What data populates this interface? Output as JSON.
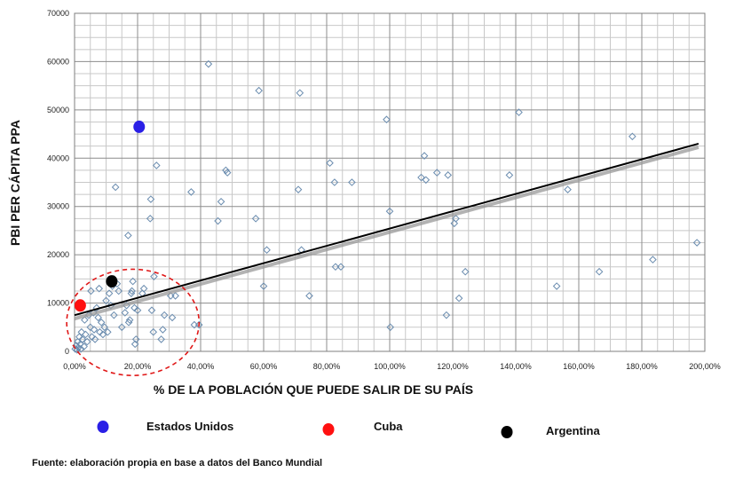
{
  "chart_data": {
    "type": "scatter",
    "xlabel": "% DE LA POBLACIÓN QUE PUEDE SALIR DE SU PAÍS",
    "ylabel": "PBI PER CÁPITA PPA",
    "xlim": [
      0,
      200
    ],
    "ylim": [
      0,
      70000
    ],
    "x_ticks": [
      "0,00%",
      "20,00%",
      "40,00%",
      "60,00%",
      "80,00%",
      "100,00%",
      "120,00%",
      "140,00%",
      "160,00%",
      "180,00%",
      "200,00%"
    ],
    "y_ticks": [
      "0",
      "10000",
      "20000",
      "30000",
      "40000",
      "50000",
      "60000",
      "70000"
    ],
    "grid": true,
    "marker_color": "#6a8caf",
    "trendline": {
      "x": [
        0,
        198
      ],
      "y": [
        7500,
        43000
      ],
      "color": "#000000"
    },
    "points": [
      [
        0.2,
        500
      ],
      [
        0.5,
        1200
      ],
      [
        0.8,
        300
      ],
      [
        1.0,
        2000
      ],
      [
        1.2,
        800
      ],
      [
        1.5,
        3000
      ],
      [
        1.8,
        1500
      ],
      [
        2.0,
        500
      ],
      [
        2.2,
        4000
      ],
      [
        2.5,
        2500
      ],
      [
        3.0,
        1000
      ],
      [
        3.2,
        6500
      ],
      [
        3.5,
        3500
      ],
      [
        4.0,
        2000
      ],
      [
        4.5,
        7500
      ],
      [
        5.0,
        5000
      ],
      [
        5.2,
        12500
      ],
      [
        5.5,
        3000
      ],
      [
        6.0,
        8000
      ],
      [
        6.2,
        4500
      ],
      [
        6.5,
        2500
      ],
      [
        7.0,
        9000
      ],
      [
        7.5,
        7000
      ],
      [
        7.8,
        13000
      ],
      [
        8.0,
        4000
      ],
      [
        8.5,
        6000
      ],
      [
        9.0,
        3500
      ],
      [
        9.5,
        5000
      ],
      [
        10.0,
        10500
      ],
      [
        10.5,
        4000
      ],
      [
        11.0,
        12000
      ],
      [
        11.5,
        9500
      ],
      [
        12.0,
        13500
      ],
      [
        12.5,
        7500
      ],
      [
        13.0,
        34000
      ],
      [
        13.5,
        14000
      ],
      [
        14.0,
        12500
      ],
      [
        15.0,
        5000
      ],
      [
        16.0,
        8000
      ],
      [
        16.5,
        9500
      ],
      [
        17.0,
        24000
      ],
      [
        17.2,
        6000
      ],
      [
        17.5,
        6500
      ],
      [
        18.0,
        12000
      ],
      [
        18.2,
        12500
      ],
      [
        18.5,
        14500
      ],
      [
        19.0,
        9000
      ],
      [
        19.2,
        1500
      ],
      [
        19.5,
        2500
      ],
      [
        20.0,
        8500
      ],
      [
        21.5,
        12000
      ],
      [
        22.0,
        13000
      ],
      [
        24.0,
        27500
      ],
      [
        24.2,
        31500
      ],
      [
        24.5,
        8500
      ],
      [
        25.0,
        4000
      ],
      [
        25.2,
        15500
      ],
      [
        26.0,
        38500
      ],
      [
        27.5,
        2500
      ],
      [
        28.0,
        4500
      ],
      [
        28.5,
        7500
      ],
      [
        30.5,
        11500
      ],
      [
        31.0,
        7000
      ],
      [
        32.0,
        11500
      ],
      [
        37.0,
        33000
      ],
      [
        38.0,
        5500
      ],
      [
        39.5,
        5500
      ],
      [
        42.5,
        59500
      ],
      [
        45.5,
        27000
      ],
      [
        46.5,
        31000
      ],
      [
        48.0,
        37500
      ],
      [
        48.5,
        37000
      ],
      [
        57.5,
        27500
      ],
      [
        58.5,
        54000
      ],
      [
        60.0,
        13500
      ],
      [
        61.0,
        21000
      ],
      [
        71.0,
        33500
      ],
      [
        71.5,
        53500
      ],
      [
        72.0,
        21000
      ],
      [
        74.5,
        11500
      ],
      [
        81.0,
        39000
      ],
      [
        82.5,
        35000
      ],
      [
        82.8,
        17500
      ],
      [
        84.5,
        17500
      ],
      [
        88.0,
        35000
      ],
      [
        99.0,
        48000
      ],
      [
        100.0,
        29000
      ],
      [
        100.2,
        5000
      ],
      [
        110.0,
        36000
      ],
      [
        111.0,
        40500
      ],
      [
        111.5,
        35500
      ],
      [
        115.0,
        37000
      ],
      [
        118.0,
        7500
      ],
      [
        118.5,
        36500
      ],
      [
        120.5,
        26500
      ],
      [
        121.0,
        27500
      ],
      [
        122.0,
        11000
      ],
      [
        124.0,
        16500
      ],
      [
        138.0,
        36500
      ],
      [
        141.0,
        49500
      ],
      [
        153.0,
        13500
      ],
      [
        156.5,
        33500
      ],
      [
        166.5,
        16500
      ],
      [
        177.0,
        44500
      ],
      [
        183.5,
        19000
      ],
      [
        197.5,
        22500
      ]
    ],
    "highlighted": [
      {
        "name": "Estados Unidos",
        "x": 20.5,
        "y": 46500,
        "color": "#2a1fe6"
      },
      {
        "name": "Cuba",
        "x": 1.8,
        "y": 9500,
        "color": "#ff1010"
      },
      {
        "name": "Argentina",
        "x": 11.8,
        "y": 14500,
        "color": "#000000"
      }
    ],
    "annotations": [
      {
        "type": "dashed-ellipse",
        "color": "#e01818",
        "cx": 18.5,
        "cy": 6000,
        "rx": 21,
        "ry": 11000
      }
    ],
    "legend": {
      "placement": "bottom",
      "entries": [
        {
          "label": "Estados Unidos",
          "color": "#2a1fe6"
        },
        {
          "label": "Cuba",
          "color": "#ff1010"
        },
        {
          "label": "Argentina",
          "color": "#000000"
        }
      ]
    },
    "source_note": "Fuente: elaboración propia en base a datos del Banco Mundial"
  }
}
